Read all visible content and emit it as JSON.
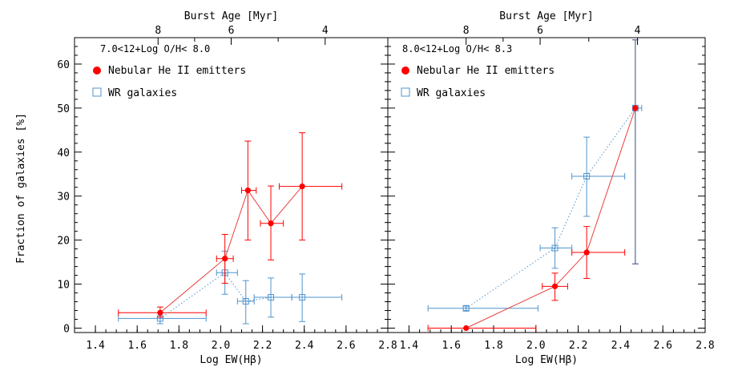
{
  "colors": {
    "he_ii": "#ff0000",
    "he_ii_line": "#e8403c",
    "wr": "#4f94cd",
    "axis": "#000000"
  },
  "shared": {
    "xlabel": "Log EW(Hβ)",
    "ylabel": "Fraction of galaxies [%]",
    "top_xlabel": "Burst Age [Myr]"
  },
  "chart_data": [
    {
      "type": "scatter",
      "panel": "left",
      "annotation": "7.0<12+Log O/H< 8.0",
      "xlim": [
        1.3,
        2.8
      ],
      "ylim": [
        -1,
        66
      ],
      "x_ticks": [
        1.4,
        1.6,
        1.8,
        2.0,
        2.2,
        2.4,
        2.6,
        2.8
      ],
      "y_ticks": [
        0,
        10,
        20,
        30,
        40,
        50,
        60
      ],
      "top_ticks": [
        {
          "x": 1.7,
          "label": "8"
        },
        {
          "x": 2.05,
          "label": "6"
        },
        {
          "x": 2.5,
          "label": "4"
        }
      ],
      "legend": [
        "Nebular He II emitters",
        "WR galaxies"
      ],
      "legend_position": "top-left",
      "series": [
        {
          "name": "Nebular He II emitters",
          "marker": "filled-circle",
          "line": "solid",
          "points": [
            {
              "x": 1.71,
              "y": 3.5,
              "xerr": [
                1.51,
                1.93
              ],
              "yerr": [
                2.5,
                4.8
              ]
            },
            {
              "x": 2.02,
              "y": 15.8,
              "xerr": [
                1.98,
                2.06
              ],
              "yerr": [
                10.2,
                21.3
              ]
            },
            {
              "x": 2.13,
              "y": 31.3,
              "xerr": [
                2.1,
                2.17
              ],
              "yerr": [
                20.0,
                42.5
              ]
            },
            {
              "x": 2.24,
              "y": 23.8,
              "xerr": [
                2.19,
                2.3
              ],
              "yerr": [
                15.5,
                32.3
              ]
            },
            {
              "x": 2.39,
              "y": 32.2,
              "xerr": [
                2.28,
                2.58
              ],
              "yerr": [
                20.0,
                44.4
              ]
            }
          ]
        },
        {
          "name": "WR galaxies",
          "marker": "open-square",
          "line": "dotted",
          "points": [
            {
              "x": 1.71,
              "y": 2.2,
              "xerr": [
                1.51,
                1.93
              ],
              "yerr": [
                1.0,
                3.5
              ]
            },
            {
              "x": 2.02,
              "y": 12.6,
              "xerr": [
                1.98,
                2.08
              ],
              "yerr": [
                7.7,
                17.5
              ]
            },
            {
              "x": 2.12,
              "y": 6.1,
              "xerr": [
                2.08,
                2.16
              ],
              "yerr": [
                1.0,
                10.8
              ]
            },
            {
              "x": 2.24,
              "y": 7.0,
              "xerr": [
                2.16,
                2.34
              ],
              "yerr": [
                2.5,
                11.4
              ]
            },
            {
              "x": 2.39,
              "y": 7.0,
              "xerr": [
                2.34,
                2.58
              ],
              "yerr": [
                1.5,
                12.3
              ]
            }
          ]
        }
      ]
    },
    {
      "type": "scatter",
      "panel": "right",
      "annotation": "8.0<12+Log O/H< 8.3",
      "xlim": [
        1.3,
        2.8
      ],
      "ylim": [
        -1,
        66
      ],
      "x_ticks": [
        1.4,
        1.6,
        1.8,
        2.0,
        2.2,
        2.4,
        2.6,
        2.8
      ],
      "y_ticks": [
        0,
        10,
        20,
        30,
        40,
        50,
        60
      ],
      "top_ticks": [
        {
          "x": 1.67,
          "label": "8"
        },
        {
          "x": 2.02,
          "label": "6"
        },
        {
          "x": 2.48,
          "label": "4"
        }
      ],
      "legend": [
        "Nebular He II emitters",
        "WR galaxies"
      ],
      "legend_position": "top-left",
      "series": [
        {
          "name": "Nebular He II emitters",
          "marker": "filled-circle",
          "line": "solid",
          "points": [
            {
              "x": 1.67,
              "y": 0.0,
              "xerr": [
                1.49,
                2.0
              ],
              "yerr": [
                0.0,
                0.0
              ]
            },
            {
              "x": 2.09,
              "y": 9.5,
              "xerr": [
                2.03,
                2.15
              ],
              "yerr": [
                6.3,
                12.5
              ]
            },
            {
              "x": 2.24,
              "y": 17.2,
              "xerr": [
                2.17,
                2.42
              ],
              "yerr": [
                11.3,
                23.1
              ]
            },
            {
              "x": 2.47,
              "y": 50.0,
              "xerr": [
                2.47,
                2.47
              ],
              "yerr": [
                50.0,
                50.0
              ]
            }
          ]
        },
        {
          "name": "WR galaxies",
          "marker": "open-square",
          "line": "dotted",
          "points": [
            {
              "x": 1.67,
              "y": 4.5,
              "xerr": [
                1.49,
                2.01
              ],
              "yerr": [
                4.0,
                5.0
              ]
            },
            {
              "x": 2.09,
              "y": 18.2,
              "xerr": [
                2.02,
                2.17
              ],
              "yerr": [
                13.6,
                22.8
              ]
            },
            {
              "x": 2.24,
              "y": 34.5,
              "xerr": [
                2.17,
                2.42
              ],
              "yerr": [
                25.4,
                43.4
              ]
            },
            {
              "x": 2.47,
              "y": 50.0,
              "xerr": [
                2.46,
                2.5
              ],
              "yerr": [
                14.6,
                65.5
              ]
            }
          ]
        }
      ]
    }
  ]
}
